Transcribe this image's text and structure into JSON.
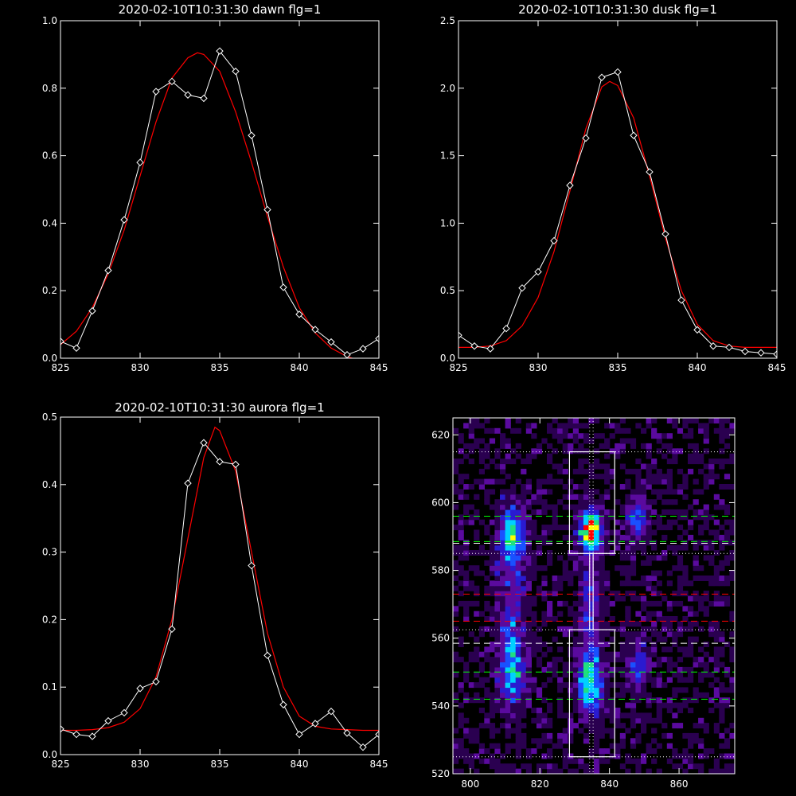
{
  "chart_data": [
    {
      "id": "dawn",
      "type": "line",
      "title": "2020-02-10T10:31:30 dawn flg=1",
      "xlim": [
        825,
        845
      ],
      "ylim": [
        0,
        1.0
      ],
      "xticks": [
        825,
        830,
        835,
        840,
        845
      ],
      "xtick_labels": [
        "825",
        "830",
        "835",
        "840",
        "845"
      ],
      "yticks": [
        0,
        0.2,
        0.4,
        0.6,
        0.8,
        1.0
      ],
      "ytick_labels": [
        "0.0",
        "0.2",
        "0.4",
        "0.6",
        "0.8",
        "1.0"
      ],
      "grid": false,
      "colors": {
        "data": "#ffffff",
        "fit": "#ff0000",
        "axes": "#ffffff"
      },
      "series": [
        {
          "kind": "data",
          "marker": "diamond",
          "x": [
            825,
            826,
            827,
            828,
            829,
            830,
            831,
            832,
            833,
            834,
            835,
            836,
            837,
            838,
            839,
            840,
            841,
            842,
            843,
            844,
            845
          ],
          "y": [
            0.05,
            0.03,
            0.14,
            0.26,
            0.41,
            0.58,
            0.79,
            0.82,
            0.78,
            0.77,
            0.91,
            0.85,
            0.66,
            0.44,
            0.21,
            0.13,
            0.085,
            0.048,
            0.01,
            0.028,
            0.058
          ]
        },
        {
          "kind": "fit",
          "x": [
            825,
            826,
            827,
            828,
            829,
            830,
            831,
            832,
            833,
            833.6,
            834,
            835,
            836,
            837,
            838,
            839,
            840,
            841,
            842,
            843,
            844,
            845
          ],
          "y": [
            0.04,
            0.08,
            0.15,
            0.25,
            0.38,
            0.54,
            0.7,
            0.83,
            0.89,
            0.905,
            0.9,
            0.85,
            0.73,
            0.58,
            0.42,
            0.27,
            0.15,
            0.075,
            0.03,
            0.005,
            -0.01,
            -0.02
          ]
        }
      ]
    },
    {
      "id": "dusk",
      "type": "line",
      "title": "2020-02-10T10:31:30 dusk flg=1",
      "xlim": [
        825,
        845
      ],
      "ylim": [
        0,
        2.5
      ],
      "xticks": [
        825,
        830,
        835,
        840,
        845
      ],
      "xtick_labels": [
        "825",
        "830",
        "835",
        "840",
        "845"
      ],
      "yticks": [
        0,
        0.5,
        1.0,
        1.5,
        2.0,
        2.5
      ],
      "ytick_labels": [
        "0.0",
        "0.5",
        "1.0",
        "1.5",
        "2.0",
        "2.5"
      ],
      "grid": false,
      "colors": {
        "data": "#ffffff",
        "fit": "#ff0000",
        "axes": "#ffffff"
      },
      "series": [
        {
          "kind": "data",
          "marker": "diamond",
          "x": [
            825,
            826,
            827,
            828,
            829,
            830,
            831,
            832,
            833,
            834,
            835,
            836,
            837,
            838,
            839,
            840,
            841,
            842,
            843,
            844,
            845
          ],
          "y": [
            0.17,
            0.09,
            0.07,
            0.22,
            0.52,
            0.64,
            0.87,
            1.28,
            1.63,
            2.08,
            2.12,
            1.65,
            1.38,
            0.92,
            0.43,
            0.21,
            0.09,
            0.08,
            0.05,
            0.04,
            0.03
          ]
        },
        {
          "kind": "fit",
          "x": [
            825,
            826,
            827,
            828,
            829,
            830,
            831,
            832,
            833,
            834,
            834.5,
            835,
            836,
            837,
            838,
            839,
            840,
            841,
            842,
            843,
            844,
            845
          ],
          "y": [
            0.08,
            0.08,
            0.09,
            0.13,
            0.24,
            0.45,
            0.79,
            1.24,
            1.7,
            2.01,
            2.05,
            2.02,
            1.78,
            1.35,
            0.89,
            0.5,
            0.25,
            0.13,
            0.09,
            0.08,
            0.08,
            0.08
          ]
        }
      ]
    },
    {
      "id": "aurora",
      "type": "line",
      "title": "2020-02-10T10:31:30 aurora flg=1",
      "xlim": [
        825,
        845
      ],
      "ylim": [
        0,
        0.5
      ],
      "xticks": [
        825,
        830,
        835,
        840,
        845
      ],
      "xtick_labels": [
        "825",
        "830",
        "835",
        "840",
        "845"
      ],
      "yticks": [
        0,
        0.1,
        0.2,
        0.3,
        0.4,
        0.5
      ],
      "ytick_labels": [
        "0.0",
        "0.1",
        "0.2",
        "0.3",
        "0.4",
        "0.5"
      ],
      "grid": false,
      "colors": {
        "data": "#ffffff",
        "fit": "#ff0000",
        "axes": "#ffffff"
      },
      "series": [
        {
          "kind": "data",
          "marker": "diamond",
          "x": [
            825,
            826,
            827,
            828,
            829,
            830,
            831,
            832,
            833,
            834,
            835,
            836,
            837,
            838,
            839,
            840,
            841,
            842,
            843,
            844,
            845
          ],
          "y": [
            0.038,
            0.03,
            0.027,
            0.05,
            0.062,
            0.098,
            0.108,
            0.186,
            0.402,
            0.462,
            0.434,
            0.43,
            0.28,
            0.147,
            0.074,
            0.03,
            0.046,
            0.064,
            0.032,
            0.011,
            0.03
          ]
        },
        {
          "kind": "fit",
          "x": [
            825,
            826,
            827,
            828,
            829,
            830,
            831,
            832,
            833,
            834,
            834.7,
            835,
            836,
            837,
            838,
            839,
            840,
            841,
            842,
            843,
            844,
            845
          ],
          "y": [
            0.036,
            0.036,
            0.037,
            0.04,
            0.048,
            0.068,
            0.115,
            0.2,
            0.32,
            0.44,
            0.485,
            0.48,
            0.42,
            0.3,
            0.18,
            0.1,
            0.057,
            0.042,
            0.038,
            0.037,
            0.036,
            0.036
          ]
        }
      ]
    },
    {
      "id": "image",
      "type": "heatmap",
      "xlim": [
        795,
        876
      ],
      "ylim": [
        520,
        625
      ],
      "xticks": [
        800,
        820,
        840,
        860
      ],
      "xtick_labels": [
        "800",
        "820",
        "840",
        "860"
      ],
      "yticks": [
        520,
        540,
        560,
        580,
        600,
        620
      ],
      "ytick_labels": [
        "520",
        "540",
        "560",
        "580",
        "600",
        "620"
      ],
      "grid": false,
      "colormap": [
        "#000000",
        "#2a0050",
        "#5a0a9e",
        "#2a1ad0",
        "#1a50ff",
        "#00d0ff",
        "#20e080",
        "#ffff00",
        "#ff0000"
      ],
      "blobs": [
        {
          "x": 812,
          "y": 590,
          "sx": 2.5,
          "sy": 6,
          "amp": 0.62
        },
        {
          "x": 812,
          "y": 551,
          "sx": 2.5,
          "sy": 7,
          "amp": 0.48
        },
        {
          "x": 834.5,
          "y": 592,
          "sx": 2,
          "sy": 4,
          "amp": 1.0
        },
        {
          "x": 834.5,
          "y": 547,
          "sx": 2.3,
          "sy": 6,
          "amp": 0.72
        },
        {
          "x": 834.5,
          "y": 570,
          "sx": 2,
          "sy": 12,
          "amp": 0.28
        },
        {
          "x": 848,
          "y": 595,
          "sx": 1.8,
          "sy": 4,
          "amp": 0.45
        },
        {
          "x": 848,
          "y": 552,
          "sx": 1.8,
          "sy": 5,
          "amp": 0.34
        },
        {
          "x": 812,
          "y": 570,
          "sx": 2.5,
          "sy": 12,
          "amp": 0.2
        }
      ],
      "vertical_lines": [
        {
          "x": 834.3,
          "color": "#ffffff",
          "style": "dotted"
        },
        {
          "x": 835.3,
          "color": "#ffffff",
          "style": "dotted"
        }
      ],
      "horizontal_lines": [
        {
          "y": 615,
          "color": "#ffffff",
          "style": "dotted"
        },
        {
          "y": 596,
          "color": "#00ff00",
          "style": "dashed"
        },
        {
          "y": 588.5,
          "color": "#00ff00",
          "style": "dashed"
        },
        {
          "y": 588,
          "color": "#ffffff",
          "style": "dashed"
        },
        {
          "y": 585,
          "color": "#ffffff",
          "style": "dotted"
        },
        {
          "y": 573,
          "color": "#ff0000",
          "style": "dashed"
        },
        {
          "y": 565,
          "color": "#ff0000",
          "style": "dashed"
        },
        {
          "y": 562.5,
          "color": "#ffffff",
          "style": "dotted"
        },
        {
          "y": 558.5,
          "color": "#ffffff",
          "style": "dashed"
        },
        {
          "y": 550,
          "color": "#00ff00",
          "style": "dashed"
        },
        {
          "y": 542,
          "color": "#00ff00",
          "style": "dashed"
        },
        {
          "y": 525,
          "color": "#ffffff",
          "style": "dotted"
        }
      ],
      "boxes": [
        {
          "x0": 828.5,
          "x1": 841.5,
          "y0": 585,
          "y1": 615
        },
        {
          "x0": 828.5,
          "x1": 841.5,
          "y0": 525,
          "y1": 562.5
        }
      ],
      "bar": {
        "x0": 834.3,
        "x1": 835.3,
        "y0": 562.5,
        "y1": 585
      }
    }
  ]
}
